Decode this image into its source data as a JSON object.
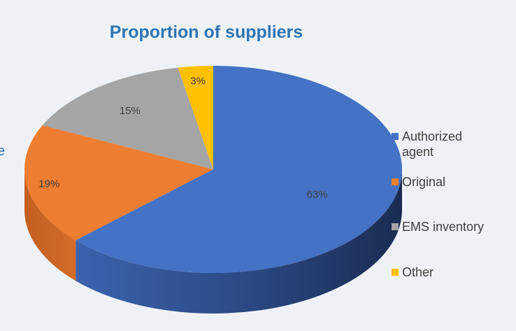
{
  "chart_data": {
    "type": "pie",
    "title": "Proportion of suppliers",
    "categories": [
      "Authorized agent",
      "Original",
      "EMS inventory",
      "Other"
    ],
    "values": [
      63,
      19,
      15,
      3
    ],
    "data_labels": [
      "63%",
      "19%",
      "15%",
      "3%"
    ],
    "colors": [
      "#4472c4",
      "#ed7d31",
      "#a5a5a5",
      "#ffc000"
    ],
    "legend": "right",
    "style": "3d"
  },
  "edge_text": "e"
}
